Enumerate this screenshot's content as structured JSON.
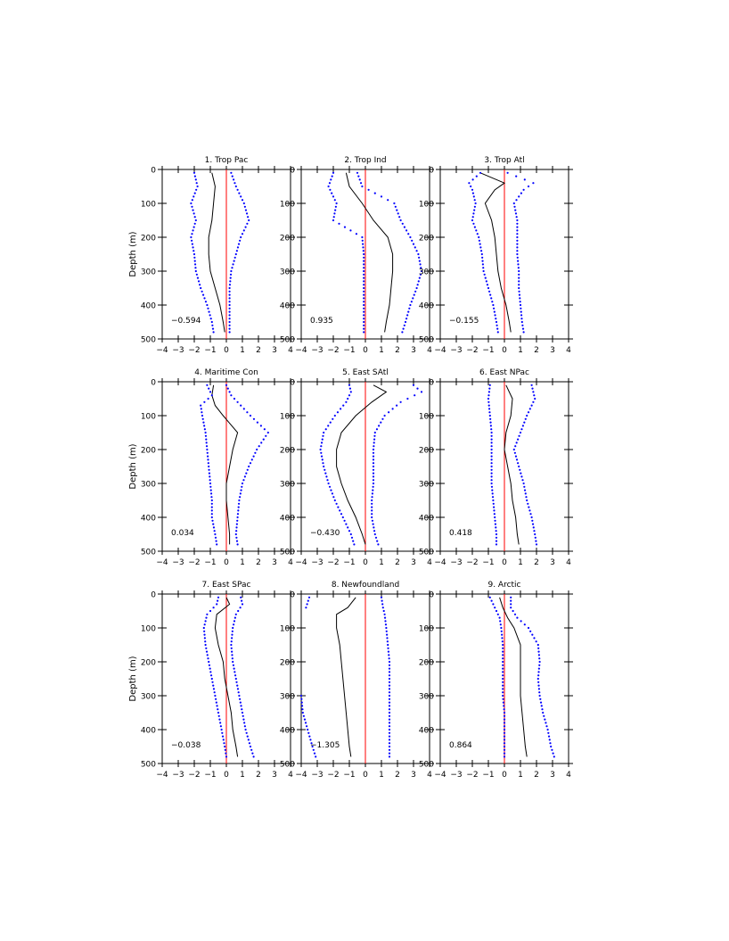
{
  "chart_data": [
    {
      "type": "line",
      "title": "1. Trop Pac",
      "value_label": "−0.594",
      "ylabel": "Depth (m)",
      "xlim": [
        -4,
        4
      ],
      "ylim": [
        0,
        500
      ],
      "y_inverted": true,
      "xticks": [
        "−4",
        "−3",
        "−2",
        "−1",
        "0",
        "1",
        "2",
        "3",
        "4"
      ],
      "yticks": [
        "0",
        "100",
        "200",
        "300",
        "400",
        "500"
      ],
      "zero_line_color": "#ff0000",
      "mean_color": "#000000",
      "bound_color": "#0000ff",
      "depth": [
        10,
        50,
        100,
        150,
        200,
        250,
        300,
        350,
        400,
        450,
        480
      ],
      "mean": [
        -0.9,
        -0.7,
        -0.8,
        -0.9,
        -1.1,
        -1.1,
        -1.0,
        -0.7,
        -0.4,
        -0.2,
        -0.1
      ],
      "lower": [
        -2.0,
        -1.8,
        -2.2,
        -1.9,
        -2.2,
        -2.0,
        -1.9,
        -1.6,
        -1.2,
        -0.9,
        -0.8
      ],
      "upper": [
        0.3,
        0.6,
        1.1,
        1.4,
        0.9,
        0.6,
        0.3,
        0.2,
        0.2,
        0.2,
        0.2
      ]
    },
    {
      "type": "line",
      "title": "2. Trop Ind",
      "value_label": "0.935",
      "ylabel": "",
      "xlim": [
        -4,
        4
      ],
      "ylim": [
        0,
        500
      ],
      "y_inverted": true,
      "xticks": [
        "−4",
        "−3",
        "−2",
        "−1",
        "0",
        "1",
        "2",
        "3",
        "4"
      ],
      "yticks": [
        "0",
        "100",
        "200",
        "300",
        "400",
        "500"
      ],
      "zero_line_color": "#ff0000",
      "mean_color": "#000000",
      "bound_color": "#0000ff",
      "depth": [
        10,
        50,
        100,
        150,
        200,
        250,
        300,
        350,
        400,
        450,
        480
      ],
      "mean": [
        -1.2,
        -1.0,
        -0.2,
        0.5,
        1.4,
        1.7,
        1.7,
        1.6,
        1.5,
        1.3,
        1.2
      ],
      "lower": [
        -2.0,
        -2.3,
        -1.8,
        -2.0,
        -0.2,
        -0.1,
        -0.1,
        -0.1,
        -0.1,
        -0.1,
        -0.1
      ],
      "upper": [
        -0.5,
        -0.2,
        1.8,
        2.2,
        2.8,
        3.3,
        3.5,
        3.2,
        2.8,
        2.5,
        2.3
      ]
    },
    {
      "type": "line",
      "title": "3. Trop Atl",
      "value_label": "−0.155",
      "ylabel": "",
      "xlim": [
        -4,
        4
      ],
      "ylim": [
        0,
        500
      ],
      "y_inverted": true,
      "xticks": [
        "−4",
        "−3",
        "−2",
        "−1",
        "0",
        "1",
        "2",
        "3",
        "4"
      ],
      "yticks": [
        "0",
        "100",
        "200",
        "300",
        "400",
        "500"
      ],
      "zero_line_color": "#ff0000",
      "mean_color": "#000000",
      "bound_color": "#0000ff",
      "depth": [
        10,
        40,
        60,
        100,
        150,
        200,
        250,
        300,
        350,
        400,
        450,
        480
      ],
      "mean": [
        -1.5,
        0.0,
        -0.6,
        -1.2,
        -0.8,
        -0.6,
        -0.5,
        -0.4,
        -0.2,
        0.1,
        0.3,
        0.4
      ],
      "lower": [
        -1.5,
        -2.2,
        -2.0,
        -1.8,
        -2.0,
        -1.6,
        -1.4,
        -1.3,
        -1.0,
        -0.7,
        -0.5,
        -0.4
      ],
      "upper": [
        0.2,
        1.8,
        1.2,
        0.6,
        0.8,
        0.8,
        0.8,
        0.9,
        0.9,
        1.0,
        1.1,
        1.2
      ]
    },
    {
      "type": "line",
      "title": "4. Maritime Con",
      "value_label": "0.034",
      "ylabel": "Depth (m)",
      "xlim": [
        -4,
        4
      ],
      "ylim": [
        0,
        500
      ],
      "y_inverted": true,
      "xticks": [
        "−4",
        "−3",
        "−2",
        "−1",
        "0",
        "1",
        "2",
        "3",
        "4"
      ],
      "yticks": [
        "0",
        "100",
        "200",
        "300",
        "400",
        "500"
      ],
      "zero_line_color": "#ff0000",
      "mean_color": "#000000",
      "bound_color": "#0000ff",
      "depth": [
        10,
        40,
        70,
        100,
        150,
        200,
        250,
        300,
        350,
        400,
        450,
        480
      ],
      "mean": [
        -0.8,
        -0.9,
        -0.7,
        -0.2,
        0.7,
        0.4,
        0.2,
        0.0,
        0.0,
        0.1,
        0.2,
        0.2
      ],
      "lower": [
        -1.2,
        -0.9,
        -1.6,
        -1.5,
        -1.3,
        -1.2,
        -1.1,
        -1.0,
        -0.9,
        -0.9,
        -0.7,
        -0.6
      ],
      "upper": [
        0.0,
        0.3,
        0.9,
        1.5,
        2.6,
        1.9,
        1.4,
        1.0,
        0.8,
        0.7,
        0.6,
        0.7
      ]
    },
    {
      "type": "line",
      "title": "5. East SAtl",
      "value_label": "−0.430",
      "ylabel": "",
      "xlim": [
        -4,
        4
      ],
      "ylim": [
        0,
        500
      ],
      "y_inverted": true,
      "xticks": [
        "−4",
        "−3",
        "−2",
        "−1",
        "0",
        "1",
        "2",
        "3",
        "4"
      ],
      "yticks": [
        "0",
        "100",
        "200",
        "300",
        "400",
        "500"
      ],
      "zero_line_color": "#ff0000",
      "mean_color": "#000000",
      "bound_color": "#0000ff",
      "depth": [
        10,
        30,
        60,
        100,
        150,
        200,
        250,
        300,
        350,
        400,
        450,
        480
      ],
      "mean": [
        0.5,
        1.3,
        0.4,
        -0.6,
        -1.5,
        -1.8,
        -1.8,
        -1.5,
        -1.1,
        -0.6,
        -0.2,
        0.0
      ],
      "lower": [
        -1.0,
        -0.9,
        -1.2,
        -1.9,
        -2.6,
        -2.8,
        -2.6,
        -2.3,
        -1.9,
        -1.4,
        -0.9,
        -0.7
      ],
      "upper": [
        3.0,
        3.5,
        2.2,
        1.2,
        0.6,
        0.5,
        0.5,
        0.5,
        0.4,
        0.4,
        0.6,
        0.8
      ]
    },
    {
      "type": "line",
      "title": "6. East NPac",
      "value_label": "0.418",
      "ylabel": "",
      "xlim": [
        -4,
        4
      ],
      "ylim": [
        0,
        500
      ],
      "y_inverted": true,
      "xticks": [
        "−4",
        "−3",
        "−2",
        "−1",
        "0",
        "1",
        "2",
        "3",
        "4"
      ],
      "yticks": [
        "0",
        "100",
        "200",
        "300",
        "400",
        "500"
      ],
      "zero_line_color": "#ff0000",
      "mean_color": "#000000",
      "bound_color": "#0000ff",
      "depth": [
        10,
        50,
        100,
        150,
        200,
        250,
        300,
        350,
        400,
        450,
        480
      ],
      "mean": [
        0.1,
        0.5,
        0.4,
        0.1,
        0.0,
        0.2,
        0.4,
        0.5,
        0.7,
        0.8,
        0.9
      ],
      "lower": [
        -0.9,
        -1.0,
        -0.9,
        -0.8,
        -0.8,
        -0.8,
        -0.8,
        -0.7,
        -0.6,
        -0.5,
        -0.5
      ],
      "upper": [
        1.7,
        1.9,
        1.4,
        1.0,
        0.6,
        0.9,
        1.2,
        1.4,
        1.7,
        1.9,
        2.0
      ]
    },
    {
      "type": "line",
      "title": "7. East SPac",
      "value_label": "−0.038",
      "ylabel": "Depth (m)",
      "xlim": [
        -4,
        4
      ],
      "ylim": [
        0,
        500
      ],
      "y_inverted": true,
      "xticks": [
        "−4",
        "−3",
        "−2",
        "−1",
        "0",
        "1",
        "2",
        "3",
        "4"
      ],
      "yticks": [
        "0",
        "100",
        "200",
        "300",
        "400",
        "500"
      ],
      "zero_line_color": "#ff0000",
      "mean_color": "#000000",
      "bound_color": "#0000ff",
      "depth": [
        10,
        30,
        60,
        100,
        150,
        200,
        250,
        300,
        350,
        400,
        450,
        480
      ],
      "mean": [
        0.0,
        0.2,
        -0.6,
        -0.7,
        -0.5,
        -0.2,
        -0.1,
        0.1,
        0.3,
        0.4,
        0.6,
        0.7
      ],
      "lower": [
        -0.5,
        -0.6,
        -1.2,
        -1.4,
        -1.3,
        -1.1,
        -0.9,
        -0.7,
        -0.5,
        -0.3,
        -0.1,
        0.0
      ],
      "upper": [
        0.9,
        1.0,
        0.6,
        0.4,
        0.3,
        0.4,
        0.6,
        0.8,
        1.0,
        1.2,
        1.5,
        1.7
      ]
    },
    {
      "type": "line",
      "title": "8. Newfoundland",
      "value_label": "−1.305",
      "ylabel": "",
      "xlim": [
        -4,
        4
      ],
      "ylim": [
        0,
        500
      ],
      "y_inverted": true,
      "xticks": [
        "−4",
        "−3",
        "−2",
        "−1",
        "0",
        "1",
        "2",
        "3",
        "4"
      ],
      "yticks": [
        "0",
        "100",
        "200",
        "300",
        "400",
        "500"
      ],
      "zero_line_color": "#ff0000",
      "mean_color": "#000000",
      "bound_color": "#0000ff",
      "depth": [
        10,
        40,
        60,
        100,
        150,
        200,
        250,
        300,
        350,
        400,
        450,
        480
      ],
      "mean": [
        -0.6,
        -1.1,
        -1.8,
        -1.8,
        -1.6,
        -1.5,
        -1.4,
        -1.3,
        -1.2,
        -1.1,
        -1.0,
        -0.9
      ],
      "lower": [
        -3.5,
        -3.7,
        null,
        null,
        null,
        null,
        null,
        -4.0,
        -3.9,
        -3.6,
        -3.3,
        -3.1
      ],
      "upper": [
        1.0,
        1.1,
        1.2,
        1.3,
        1.4,
        1.5,
        1.5,
        1.5,
        1.5,
        1.5,
        1.5,
        1.5
      ]
    },
    {
      "type": "line",
      "title": "9. Arctic",
      "value_label": "0.864",
      "ylabel": "",
      "xlim": [
        -4,
        4
      ],
      "ylim": [
        0,
        500
      ],
      "y_inverted": true,
      "xticks": [
        "−4",
        "−3",
        "−2",
        "−1",
        "0",
        "1",
        "2",
        "3",
        "4"
      ],
      "yticks": [
        "0",
        "100",
        "200",
        "300",
        "400",
        "500"
      ],
      "zero_line_color": "#ff0000",
      "mean_color": "#000000",
      "bound_color": "#0000ff",
      "depth": [
        10,
        40,
        70,
        100,
        150,
        200,
        250,
        300,
        350,
        400,
        450,
        480
      ],
      "mean": [
        -0.3,
        -0.1,
        0.2,
        0.6,
        1.0,
        1.0,
        1.0,
        1.0,
        1.1,
        1.2,
        1.3,
        1.4
      ],
      "lower": [
        -0.9,
        -0.6,
        -0.3,
        -0.2,
        -0.1,
        -0.1,
        -0.1,
        -0.1,
        0.0,
        0.0,
        0.0,
        0.0
      ],
      "upper": [
        0.4,
        0.4,
        0.8,
        1.5,
        2.1,
        2.2,
        2.1,
        2.2,
        2.4,
        2.7,
        2.9,
        3.1
      ]
    }
  ]
}
